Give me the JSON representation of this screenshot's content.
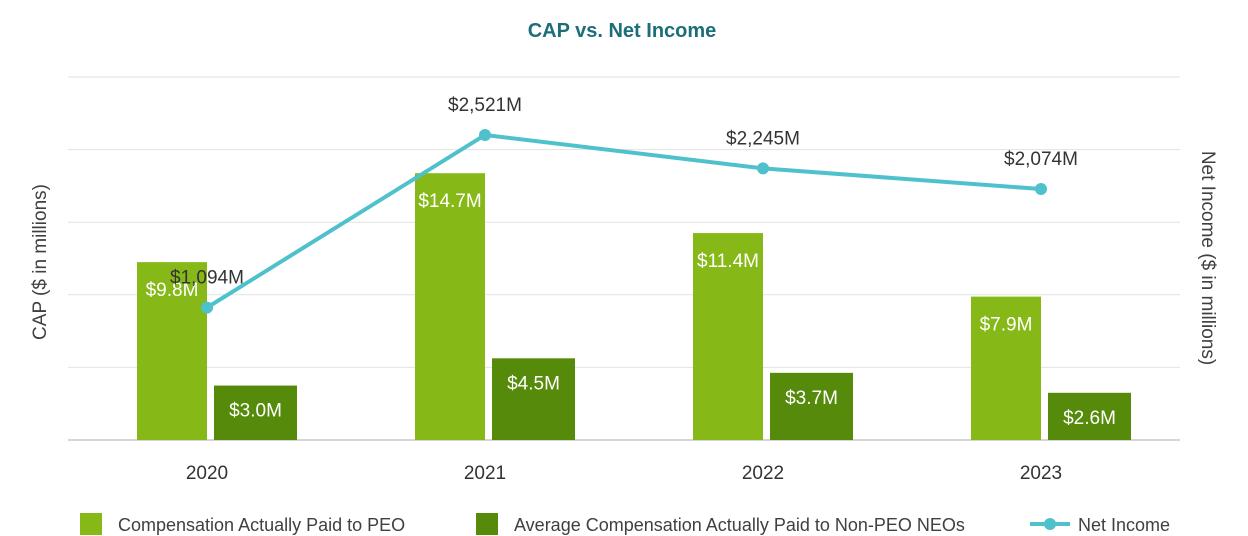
{
  "chart_data": {
    "type": "bar",
    "title": "CAP vs. Net Income",
    "ylabel_left": "CAP ($ in millions)",
    "ylabel_right": "Net Income ($ in millions)",
    "categories": [
      "2020",
      "2021",
      "2022",
      "2023"
    ],
    "ylim_left": [
      0,
      20
    ],
    "ylim_right": [
      0,
      3000
    ],
    "grid": true,
    "legend_position": "bottom",
    "series": [
      {
        "name": "Compensation Actually Paid to PEO",
        "type": "bar",
        "axis": "left",
        "color": "#86b817",
        "values": [
          9.8,
          14.7,
          11.4,
          7.9
        ],
        "labels": [
          "$9.8M",
          "$14.7M",
          "$11.4M",
          "$7.9M"
        ]
      },
      {
        "name": "Average Compensation Actually Paid to Non-PEO NEOs",
        "type": "bar",
        "axis": "left",
        "color": "#568a0b",
        "values": [
          3.0,
          4.5,
          3.7,
          2.6
        ],
        "labels": [
          "$3.0M",
          "$4.5M",
          "$3.7M",
          "$2.6M"
        ]
      },
      {
        "name": "Net Income",
        "type": "line",
        "axis": "right",
        "color": "#4fc1cc",
        "values": [
          1094,
          2521,
          2245,
          2074
        ],
        "labels": [
          "$1,094M",
          "$2,521M",
          "$2,245M",
          "$2,074M"
        ]
      }
    ]
  }
}
